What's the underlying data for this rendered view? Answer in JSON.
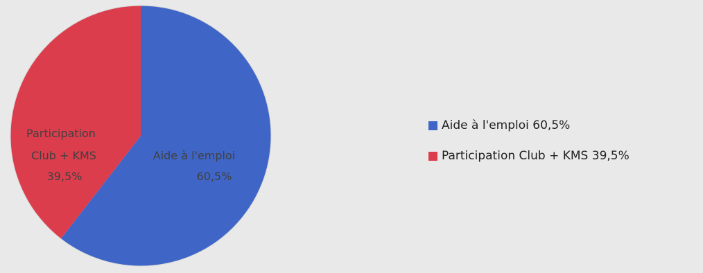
{
  "chart_data": {
    "type": "pie",
    "title": "",
    "slices": [
      {
        "label": "Aide à l'emploi",
        "value": 60.5,
        "value_label": "60,5%",
        "legend_label": "Aide à l'emploi 60,5%",
        "color": "#3f66c7"
      },
      {
        "label": "Participation Club + KMS",
        "label_lines": [
          "Participation",
          "Club + KMS"
        ],
        "value": 39.5,
        "value_label": "39,5%",
        "legend_label": "Participation Club + KMS 39,5%",
        "color": "#db3d4d"
      }
    ],
    "legend_position": "right"
  }
}
